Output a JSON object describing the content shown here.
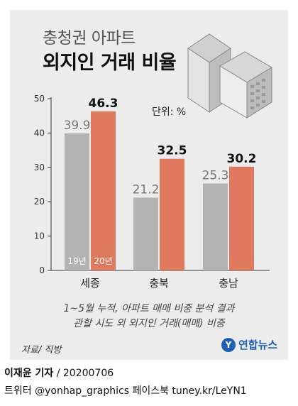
{
  "title_line1": "충청권 아파트",
  "title_line2": "외지인 거래 비율",
  "unit": "단위: %",
  "note_line1": "1~5월 누적, 아파트 매매 비중 분석 결과",
  "note_line2": "관할 시도 외 외지인 거래(매매) 비중",
  "source": "자료/ 직방",
  "logo": "연합뉴스",
  "reporter": "이재윤 기자",
  "date": " / 20200706",
  "social": "트위터 @yonhap_graphics  페이스북 tuney.kr/LeYN1",
  "colors": {
    "y2019": "#b3b3b3",
    "y2020": "#e07a5f",
    "panel": "#ececec",
    "logo": "#1f5fb4"
  },
  "chart_data": {
    "type": "bar",
    "categories": [
      "세종",
      "충북",
      "충남"
    ],
    "series": [
      {
        "name": "19년",
        "values": [
          39.9,
          21.2,
          25.3
        ]
      },
      {
        "name": "20년",
        "values": [
          46.3,
          32.5,
          30.2
        ]
      }
    ],
    "ylim": [
      0,
      50
    ],
    "yticks": [
      0,
      10,
      20,
      30,
      40,
      50
    ],
    "unit": "단위: %",
    "legend": "inside-first-group"
  }
}
